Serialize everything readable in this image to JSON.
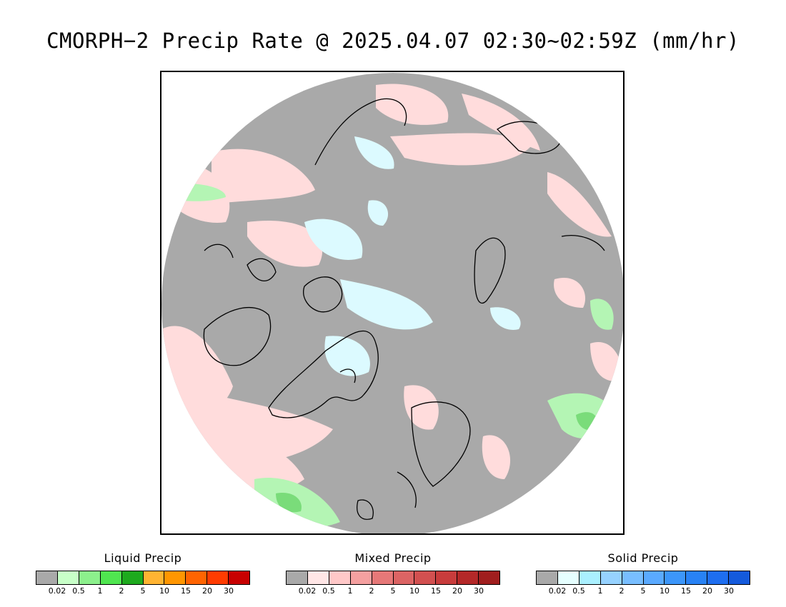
{
  "title": "CMORPH−2 Precip Rate @ 2025.04.07 02:30~02:59Z (mm/hr)",
  "map": {
    "projection": "north polar stereographic",
    "background_color": "#a9a9a9",
    "coastline_color": "#000000",
    "colors": {
      "light_pink": "#ffdcdc",
      "pink": "#ffc8c8",
      "light_cyan": "#dcfaff",
      "cyan": "#c8f5ff",
      "light_green": "#b4f5b4",
      "green": "#7adc7a",
      "dark_green": "#28b428",
      "red": "#e08080"
    }
  },
  "legends": [
    {
      "name": "liquid",
      "title": "Liquid Precip",
      "colors": [
        "#a9a9a9",
        "#c8ffc8",
        "#8cf08c",
        "#50e650",
        "#1eaa1e",
        "#ffb432",
        "#ff9600",
        "#ff6400",
        "#ff3c00",
        "#c80000"
      ],
      "ticks": [
        "0.02",
        "0.5",
        "1",
        "2",
        "5",
        "10",
        "15",
        "20",
        "30"
      ]
    },
    {
      "name": "mixed",
      "title": "Mixed Precip",
      "colors": [
        "#a9a9a9",
        "#ffe6e6",
        "#ffc8c8",
        "#f5a0a0",
        "#e67878",
        "#dc6464",
        "#d25050",
        "#c83c3c",
        "#b42828",
        "#a01e1e"
      ],
      "ticks": [
        "0.02",
        "0.5",
        "1",
        "2",
        "5",
        "10",
        "15",
        "20",
        "30"
      ]
    },
    {
      "name": "solid",
      "title": "Solid Precip",
      "colors": [
        "#a9a9a9",
        "#e6ffff",
        "#aaf0ff",
        "#96d2ff",
        "#78beff",
        "#5aaaff",
        "#3c96fa",
        "#2882f5",
        "#1e6ef0",
        "#145adc"
      ],
      "ticks": [
        "0.02",
        "0.5",
        "1",
        "2",
        "5",
        "10",
        "15",
        "20",
        "30"
      ]
    }
  ]
}
